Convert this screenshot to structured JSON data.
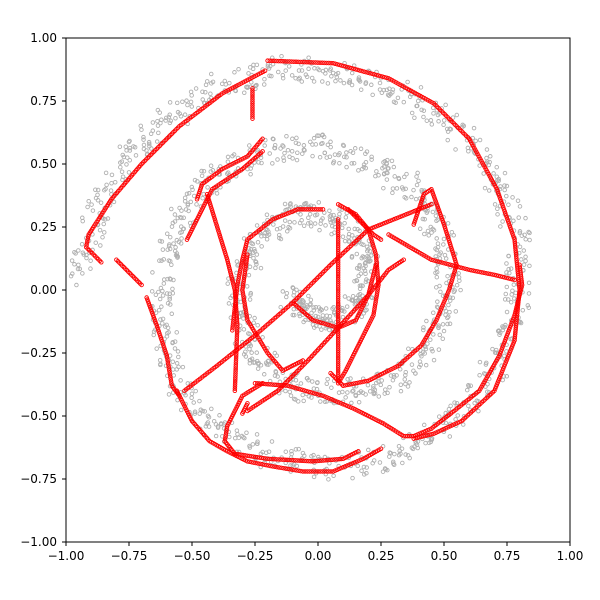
{
  "chart_data": {
    "type": "scatter",
    "title": "",
    "xlabel": "",
    "ylabel": "",
    "xlim": [
      -1.0,
      1.0
    ],
    "ylim": [
      -1.0,
      1.0
    ],
    "grid": false,
    "legend": "none",
    "xticks": [
      "−1.00",
      "−0.75",
      "−0.50",
      "−0.25",
      "0.00",
      "0.25",
      "0.50",
      "0.75",
      "1.00"
    ],
    "yticks": [
      "1.00",
      "0.75",
      "0.50",
      "0.25",
      "0.00",
      "−0.25",
      "−0.50",
      "−0.75",
      "−1.00"
    ],
    "series": [
      {
        "color": "#b0b0b0",
        "marker": "hollow-circle",
        "spiral_reference": [
          [
            -0.1,
            -0.02
          ],
          [
            -0.05,
            -0.1
          ],
          [
            0.05,
            -0.12
          ],
          [
            0.15,
            -0.05
          ],
          [
            0.2,
            0.08
          ],
          [
            0.15,
            0.22
          ],
          [
            0.02,
            0.3
          ],
          [
            -0.12,
            0.3
          ],
          [
            -0.24,
            0.2
          ],
          [
            -0.31,
            0.02
          ],
          [
            -0.3,
            -0.16
          ],
          [
            -0.2,
            -0.32
          ],
          [
            -0.04,
            -0.4
          ],
          [
            0.16,
            -0.4
          ],
          [
            0.34,
            -0.33
          ],
          [
            0.46,
            -0.18
          ],
          [
            0.52,
            0.0
          ],
          [
            0.5,
            0.2
          ],
          [
            0.4,
            0.38
          ],
          [
            0.22,
            0.5
          ],
          [
            0.0,
            0.57
          ],
          [
            -0.22,
            0.55
          ],
          [
            -0.4,
            0.45
          ],
          [
            -0.54,
            0.28
          ],
          [
            -0.62,
            0.06
          ],
          [
            -0.62,
            -0.18
          ],
          [
            -0.54,
            -0.4
          ],
          [
            -0.38,
            -0.57
          ],
          [
            -0.16,
            -0.67
          ],
          [
            0.08,
            -0.71
          ],
          [
            0.32,
            -0.66
          ],
          [
            0.54,
            -0.52
          ],
          [
            0.7,
            -0.32
          ],
          [
            0.79,
            -0.08
          ],
          [
            0.8,
            0.18
          ],
          [
            0.72,
            0.42
          ],
          [
            0.57,
            0.62
          ],
          [
            0.36,
            0.77
          ],
          [
            0.12,
            0.86
          ],
          [
            -0.12,
            0.88
          ],
          [
            -0.36,
            0.82
          ],
          [
            -0.58,
            0.7
          ],
          [
            -0.76,
            0.52
          ],
          [
            -0.88,
            0.3
          ],
          [
            -0.96,
            0.05
          ]
        ]
      },
      {
        "color": "#ff0000",
        "marker": "hollow-circle",
        "strokes": [
          [
            [
              -0.2,
              0.91
            ],
            [
              0.06,
              0.9
            ],
            [
              0.28,
              0.84
            ],
            [
              0.46,
              0.74
            ],
            [
              0.6,
              0.6
            ],
            [
              0.71,
              0.4
            ],
            [
              0.78,
              0.2
            ],
            [
              0.8,
              0.0
            ],
            [
              0.78,
              -0.2
            ],
            [
              0.7,
              -0.4
            ],
            [
              0.57,
              -0.52
            ],
            [
              0.46,
              -0.57
            ],
            [
              0.38,
              -0.59
            ]
          ],
          [
            [
              -0.21,
              0.87
            ],
            [
              -0.38,
              0.78
            ],
            [
              -0.55,
              0.65
            ],
            [
              -0.7,
              0.5
            ],
            [
              -0.82,
              0.36
            ],
            [
              -0.91,
              0.22
            ],
            [
              -0.92,
              0.17
            ],
            [
              -0.86,
              0.11
            ]
          ],
          [
            [
              -0.22,
              0.6
            ],
            [
              -0.28,
              0.53
            ],
            [
              -0.38,
              0.48
            ],
            [
              -0.46,
              0.42
            ],
            [
              -0.48,
              0.36
            ]
          ],
          [
            [
              -0.44,
              0.38
            ],
            [
              -0.4,
              0.25
            ],
            [
              -0.36,
              0.12
            ],
            [
              -0.33,
              0.0
            ],
            [
              -0.32,
              -0.14
            ],
            [
              -0.33,
              -0.4
            ]
          ],
          [
            [
              0.08,
              0.34
            ],
            [
              0.15,
              0.3
            ],
            [
              0.2,
              0.24
            ],
            [
              0.23,
              0.14
            ],
            [
              0.24,
              0.02
            ],
            [
              0.22,
              -0.1
            ],
            [
              0.17,
              -0.2
            ],
            [
              0.11,
              -0.32
            ],
            [
              0.08,
              -0.37
            ]
          ],
          [
            [
              0.02,
              0.32
            ],
            [
              -0.08,
              0.32
            ],
            [
              -0.18,
              0.28
            ],
            [
              -0.28,
              0.2
            ],
            [
              -0.3,
              0.12
            ],
            [
              -0.32,
              0.02
            ],
            [
              -0.34,
              -0.16
            ]
          ],
          [
            [
              -0.28,
              0.14
            ],
            [
              -0.3,
              0.0
            ],
            [
              -0.28,
              -0.12
            ],
            [
              -0.2,
              -0.25
            ],
            [
              -0.14,
              -0.32
            ],
            [
              -0.06,
              -0.28
            ]
          ],
          [
            [
              -0.1,
              -0.05
            ],
            [
              -0.02,
              -0.12
            ],
            [
              0.08,
              -0.15
            ],
            [
              0.15,
              -0.12
            ],
            [
              0.2,
              -0.02
            ],
            [
              0.23,
              0.1
            ]
          ],
          [
            [
              0.05,
              -0.33
            ],
            [
              0.1,
              -0.38
            ],
            [
              0.2,
              -0.36
            ],
            [
              0.32,
              -0.3
            ],
            [
              0.41,
              -0.22
            ],
            [
              0.47,
              -0.12
            ],
            [
              0.52,
              0.0
            ],
            [
              0.55,
              0.1
            ],
            [
              0.5,
              0.26
            ],
            [
              0.45,
              0.4
            ],
            [
              0.42,
              0.38
            ],
            [
              0.38,
              0.26
            ]
          ],
          [
            [
              -0.22,
              -0.37
            ],
            [
              -0.3,
              -0.42
            ],
            [
              -0.36,
              -0.54
            ],
            [
              -0.37,
              -0.6
            ],
            [
              -0.33,
              -0.65
            ],
            [
              -0.2,
              -0.67
            ],
            [
              -0.02,
              -0.68
            ],
            [
              0.1,
              -0.67
            ],
            [
              0.16,
              -0.64
            ]
          ],
          [
            [
              -0.25,
              -0.37
            ],
            [
              -0.12,
              -0.38
            ],
            [
              0.02,
              -0.42
            ],
            [
              0.14,
              -0.47
            ],
            [
              0.26,
              -0.53
            ],
            [
              0.34,
              -0.58
            ],
            [
              0.38,
              -0.58
            ],
            [
              0.45,
              -0.55
            ],
            [
              0.54,
              -0.48
            ],
            [
              0.64,
              -0.4
            ],
            [
              0.72,
              -0.26
            ],
            [
              0.78,
              -0.1
            ],
            [
              0.81,
              0.02
            ],
            [
              0.8,
              0.1
            ]
          ],
          [
            [
              -0.56,
              -0.4
            ],
            [
              -0.5,
              -0.52
            ],
            [
              -0.43,
              -0.6
            ],
            [
              -0.36,
              -0.64
            ],
            [
              -0.28,
              -0.68
            ],
            [
              -0.18,
              -0.7
            ],
            [
              -0.06,
              -0.72
            ],
            [
              0.06,
              -0.72
            ],
            [
              0.18,
              -0.67
            ],
            [
              0.25,
              -0.63
            ]
          ],
          [
            [
              -0.22,
              0.55
            ],
            [
              -0.3,
              0.48
            ],
            [
              -0.42,
              0.4
            ],
            [
              -0.48,
              0.28
            ],
            [
              -0.52,
              0.2
            ]
          ],
          [
            [
              -0.68,
              -0.03
            ],
            [
              -0.64,
              -0.14
            ],
            [
              -0.6,
              -0.26
            ],
            [
              -0.58,
              -0.38
            ],
            [
              -0.55,
              -0.42
            ]
          ],
          [
            [
              0.12,
              0.32
            ],
            [
              0.22,
              0.22
            ],
            [
              0.25,
              0.2
            ]
          ],
          [
            [
              0.28,
              0.22
            ],
            [
              0.45,
              0.12
            ],
            [
              0.6,
              0.08
            ],
            [
              0.7,
              0.06
            ],
            [
              0.78,
              0.04
            ]
          ],
          [
            [
              0.08,
              0.28
            ],
            [
              0.08,
              0.0
            ],
            [
              0.08,
              -0.36
            ]
          ],
          [
            [
              -0.26,
              0.8
            ],
            [
              -0.26,
              0.68
            ]
          ],
          [
            [
              -0.28,
              -0.45
            ],
            [
              -0.3,
              -0.49
            ]
          ],
          [
            [
              -0.53,
              -0.4
            ],
            [
              -0.4,
              -0.3
            ],
            [
              -0.25,
              -0.18
            ],
            [
              -0.1,
              -0.05
            ],
            [
              0.05,
              0.1
            ],
            [
              0.2,
              0.24
            ],
            [
              0.35,
              0.3
            ],
            [
              0.45,
              0.34
            ]
          ],
          [
            [
              -0.8,
              0.12
            ],
            [
              -0.7,
              0.02
            ]
          ],
          [
            [
              -0.28,
              -0.48
            ],
            [
              -0.16,
              -0.4
            ],
            [
              -0.04,
              -0.28
            ],
            [
              0.08,
              -0.15
            ],
            [
              0.2,
              -0.02
            ],
            [
              0.28,
              0.08
            ],
            [
              0.34,
              0.12
            ]
          ]
        ]
      }
    ]
  }
}
